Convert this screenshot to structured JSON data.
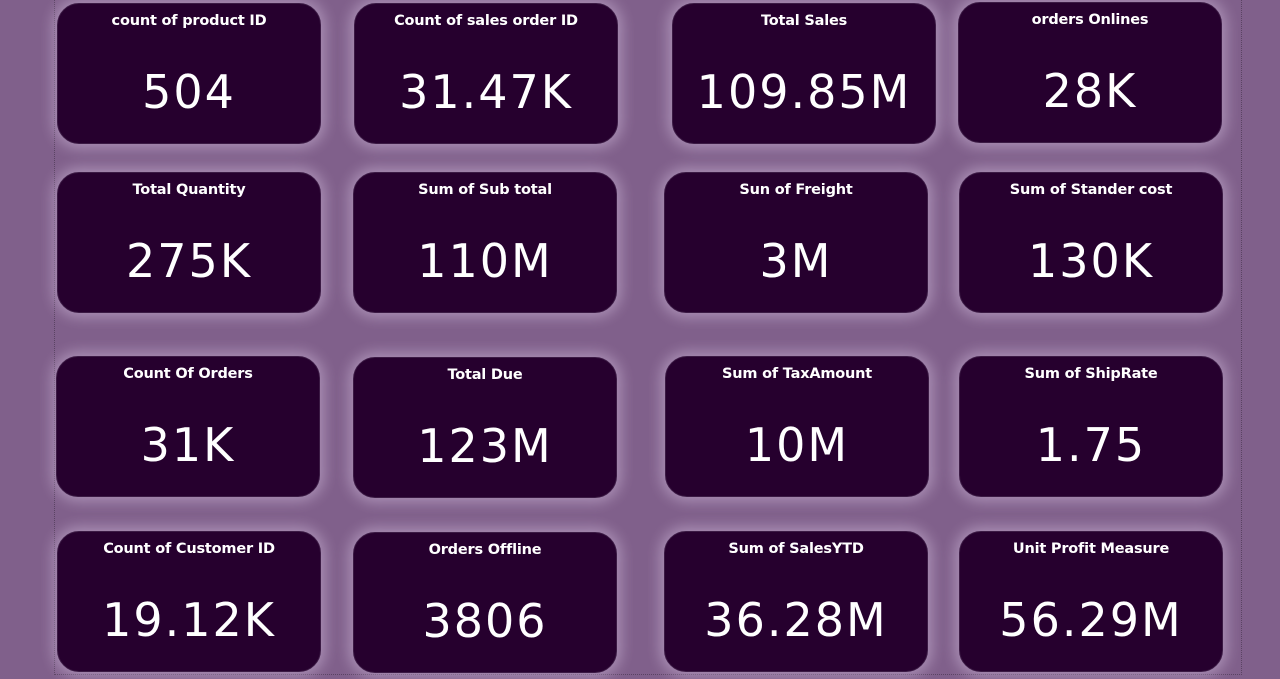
{
  "cards": [
    {
      "title": "count of product ID",
      "value": "504"
    },
    {
      "title": "Count of sales order ID",
      "value": "31.47K"
    },
    {
      "title": "Total Sales",
      "value": "109.85M"
    },
    {
      "title": "orders Onlines",
      "value": "28K"
    },
    {
      "title": "Total Quantity",
      "value": "275K"
    },
    {
      "title": "Sum of Sub total",
      "value": "110M"
    },
    {
      "title": "Sun of Freight",
      "value": "3M"
    },
    {
      "title": "Sum of Stander cost",
      "value": "130K"
    },
    {
      "title": "Count Of Orders",
      "value": "31K"
    },
    {
      "title": "Total Due",
      "value": "123M"
    },
    {
      "title": "Sum of TaxAmount",
      "value": "10M"
    },
    {
      "title": "Sum of ShipRate",
      "value": "1.75"
    },
    {
      "title": "Count of Customer ID",
      "value": "19.12K"
    },
    {
      "title": "Orders Offline",
      "value": "3806"
    },
    {
      "title": "Sum of SalesYTD",
      "value": "36.28M"
    },
    {
      "title": "Unit Profit Measure",
      "value": "56.29M"
    }
  ]
}
